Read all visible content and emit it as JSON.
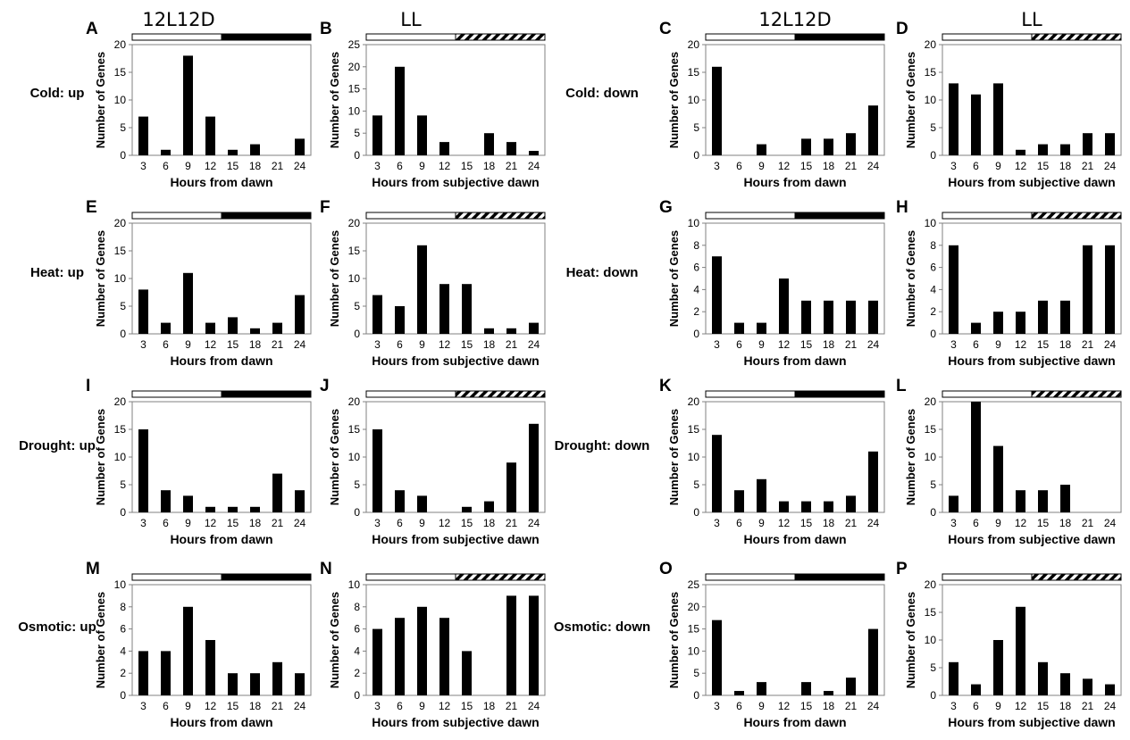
{
  "column_headers": [
    "12L12D",
    "LL",
    "12L12D",
    "LL"
  ],
  "row_labels": [
    "Cold: up",
    "Cold: down",
    "Heat: up",
    "Heat: down",
    "Drought: up",
    "Drought: down",
    "Osmotic: up",
    "Osmotic: down"
  ],
  "colors": {
    "bar": "#000000",
    "axis": "#808080",
    "text": "#000000",
    "light_bar": "#ffffff"
  },
  "chart_data": [
    {
      "panel": "A",
      "type": "bar",
      "categories": [
        "3",
        "6",
        "9",
        "12",
        "15",
        "18",
        "21",
        "24"
      ],
      "values": [
        7,
        1,
        18,
        7,
        1,
        2,
        0,
        3
      ],
      "ylim": [
        0,
        20
      ],
      "yticks": [
        "0",
        "5",
        "10",
        "15",
        "20"
      ],
      "ylabel": "Number of Genes",
      "xlabel": "Hours from dawn",
      "light_dark_bar": "12L12D"
    },
    {
      "panel": "B",
      "type": "bar",
      "categories": [
        "3",
        "6",
        "9",
        "12",
        "15",
        "18",
        "21",
        "24"
      ],
      "values": [
        9,
        20,
        9,
        3,
        0,
        5,
        3,
        1
      ],
      "ylim": [
        0,
        25
      ],
      "yticks": [
        "0",
        "5",
        "10",
        "15",
        "20",
        "25"
      ],
      "ylabel": "Number of Genes",
      "xlabel": "Hours from subjective dawn",
      "light_dark_bar": "LL"
    },
    {
      "panel": "C",
      "type": "bar",
      "categories": [
        "3",
        "6",
        "9",
        "12",
        "15",
        "18",
        "21",
        "24"
      ],
      "values": [
        16,
        0,
        2,
        0,
        3,
        3,
        4,
        9
      ],
      "ylim": [
        0,
        20
      ],
      "yticks": [
        "0",
        "5",
        "10",
        "15",
        "20"
      ],
      "ylabel": "Number of Genes",
      "xlabel": "Hours from dawn",
      "light_dark_bar": "12L12D"
    },
    {
      "panel": "D",
      "type": "bar",
      "categories": [
        "3",
        "6",
        "9",
        "12",
        "15",
        "18",
        "21",
        "24"
      ],
      "values": [
        13,
        11,
        13,
        1,
        2,
        2,
        4,
        4
      ],
      "ylim": [
        0,
        20
      ],
      "yticks": [
        "0",
        "5",
        "10",
        "15",
        "20"
      ],
      "ylabel": "Number of Genes",
      "xlabel": "Hours from subjective dawn",
      "light_dark_bar": "LL"
    },
    {
      "panel": "E",
      "type": "bar",
      "categories": [
        "3",
        "6",
        "9",
        "12",
        "15",
        "18",
        "21",
        "24"
      ],
      "values": [
        8,
        2,
        11,
        2,
        3,
        1,
        2,
        7
      ],
      "ylim": [
        0,
        20
      ],
      "yticks": [
        "0",
        "5",
        "10",
        "15",
        "20"
      ],
      "ylabel": "Number of Genes",
      "xlabel": "Hours from dawn",
      "light_dark_bar": "12L12D"
    },
    {
      "panel": "F",
      "type": "bar",
      "categories": [
        "3",
        "6",
        "9",
        "12",
        "15",
        "18",
        "21",
        "24"
      ],
      "values": [
        7,
        5,
        16,
        9,
        9,
        1,
        1,
        2
      ],
      "ylim": [
        0,
        20
      ],
      "yticks": [
        "0",
        "5",
        "10",
        "15",
        "20"
      ],
      "ylabel": "Number of Genes",
      "xlabel": "Hours from subjective dawn",
      "light_dark_bar": "LL"
    },
    {
      "panel": "G",
      "type": "bar",
      "categories": [
        "3",
        "6",
        "9",
        "12",
        "15",
        "18",
        "21",
        "24"
      ],
      "values": [
        7,
        1,
        1,
        5,
        3,
        3,
        3,
        3
      ],
      "ylim": [
        0,
        10
      ],
      "yticks": [
        "0",
        "2",
        "4",
        "6",
        "8",
        "10"
      ],
      "ylabel": "Number of Genes",
      "xlabel": "Hours from dawn",
      "light_dark_bar": "12L12D"
    },
    {
      "panel": "H",
      "type": "bar",
      "categories": [
        "3",
        "6",
        "9",
        "12",
        "15",
        "18",
        "21",
        "24"
      ],
      "values": [
        8,
        1,
        2,
        2,
        3,
        3,
        8,
        8
      ],
      "ylim": [
        0,
        10
      ],
      "yticks": [
        "0",
        "2",
        "4",
        "6",
        "8",
        "10"
      ],
      "ylabel": "Number of Genes",
      "xlabel": "Hours from subjective dawn",
      "light_dark_bar": "LL"
    },
    {
      "panel": "I",
      "type": "bar",
      "categories": [
        "3",
        "6",
        "9",
        "12",
        "15",
        "18",
        "21",
        "24"
      ],
      "values": [
        15,
        4,
        3,
        1,
        1,
        1,
        7,
        4
      ],
      "ylim": [
        0,
        20
      ],
      "yticks": [
        "0",
        "5",
        "10",
        "15",
        "20"
      ],
      "ylabel": "Number of Genes",
      "xlabel": "Hours from dawn",
      "light_dark_bar": "12L12D"
    },
    {
      "panel": "J",
      "type": "bar",
      "categories": [
        "3",
        "6",
        "9",
        "12",
        "15",
        "18",
        "21",
        "24"
      ],
      "values": [
        15,
        4,
        3,
        0,
        1,
        2,
        9,
        16
      ],
      "ylim": [
        0,
        20
      ],
      "yticks": [
        "0",
        "5",
        "10",
        "15",
        "20"
      ],
      "ylabel": "Number of Genes",
      "xlabel": "Hours from subjective dawn",
      "light_dark_bar": "LL"
    },
    {
      "panel": "K",
      "type": "bar",
      "categories": [
        "3",
        "6",
        "9",
        "12",
        "15",
        "18",
        "21",
        "24"
      ],
      "values": [
        14,
        4,
        6,
        2,
        2,
        2,
        3,
        11
      ],
      "ylim": [
        0,
        20
      ],
      "yticks": [
        "0",
        "5",
        "10",
        "15",
        "20"
      ],
      "ylabel": "Number of Genes",
      "xlabel": "Hours from dawn",
      "light_dark_bar": "12L12D"
    },
    {
      "panel": "L",
      "type": "bar",
      "categories": [
        "3",
        "6",
        "9",
        "12",
        "15",
        "18",
        "21",
        "24"
      ],
      "values": [
        3,
        20,
        12,
        4,
        4,
        5,
        0,
        0
      ],
      "ylim": [
        0,
        20
      ],
      "yticks": [
        "0",
        "5",
        "10",
        "15",
        "20"
      ],
      "ylabel": "Number of Genes",
      "xlabel": "Hours from subjective dawn",
      "light_dark_bar": "LL"
    },
    {
      "panel": "M",
      "type": "bar",
      "categories": [
        "3",
        "6",
        "9",
        "12",
        "15",
        "18",
        "21",
        "24"
      ],
      "values": [
        4,
        4,
        8,
        5,
        2,
        2,
        3,
        2
      ],
      "ylim": [
        0,
        10
      ],
      "yticks": [
        "0",
        "2",
        "4",
        "6",
        "8",
        "10"
      ],
      "ylabel": "Number of Genes",
      "xlabel": "Hours from dawn",
      "light_dark_bar": "12L12D"
    },
    {
      "panel": "N",
      "type": "bar",
      "categories": [
        "3",
        "6",
        "9",
        "12",
        "15",
        "18",
        "21",
        "24"
      ],
      "values": [
        6,
        7,
        8,
        7,
        4,
        0,
        9,
        9
      ],
      "ylim": [
        0,
        10
      ],
      "yticks": [
        "0",
        "2",
        "4",
        "6",
        "8",
        "10"
      ],
      "ylabel": "Number of Genes",
      "xlabel": "Hours from subjective dawn",
      "light_dark_bar": "LL"
    },
    {
      "panel": "O",
      "type": "bar",
      "categories": [
        "3",
        "6",
        "9",
        "12",
        "15",
        "18",
        "21",
        "24"
      ],
      "values": [
        17,
        1,
        3,
        0,
        3,
        1,
        4,
        15
      ],
      "ylim": [
        0,
        25
      ],
      "yticks": [
        "0",
        "5",
        "10",
        "15",
        "20",
        "25"
      ],
      "ylabel": "Number of Genes",
      "xlabel": "Hours from dawn",
      "light_dark_bar": "12L12D"
    },
    {
      "panel": "P",
      "type": "bar",
      "categories": [
        "3",
        "6",
        "9",
        "12",
        "15",
        "18",
        "21",
        "24"
      ],
      "values": [
        6,
        2,
        10,
        16,
        6,
        4,
        3,
        2
      ],
      "ylim": [
        0,
        20
      ],
      "yticks": [
        "0",
        "5",
        "10",
        "15",
        "20"
      ],
      "ylabel": "Number of Genes",
      "xlabel": "Hours from subjective dawn",
      "light_dark_bar": "LL"
    }
  ]
}
